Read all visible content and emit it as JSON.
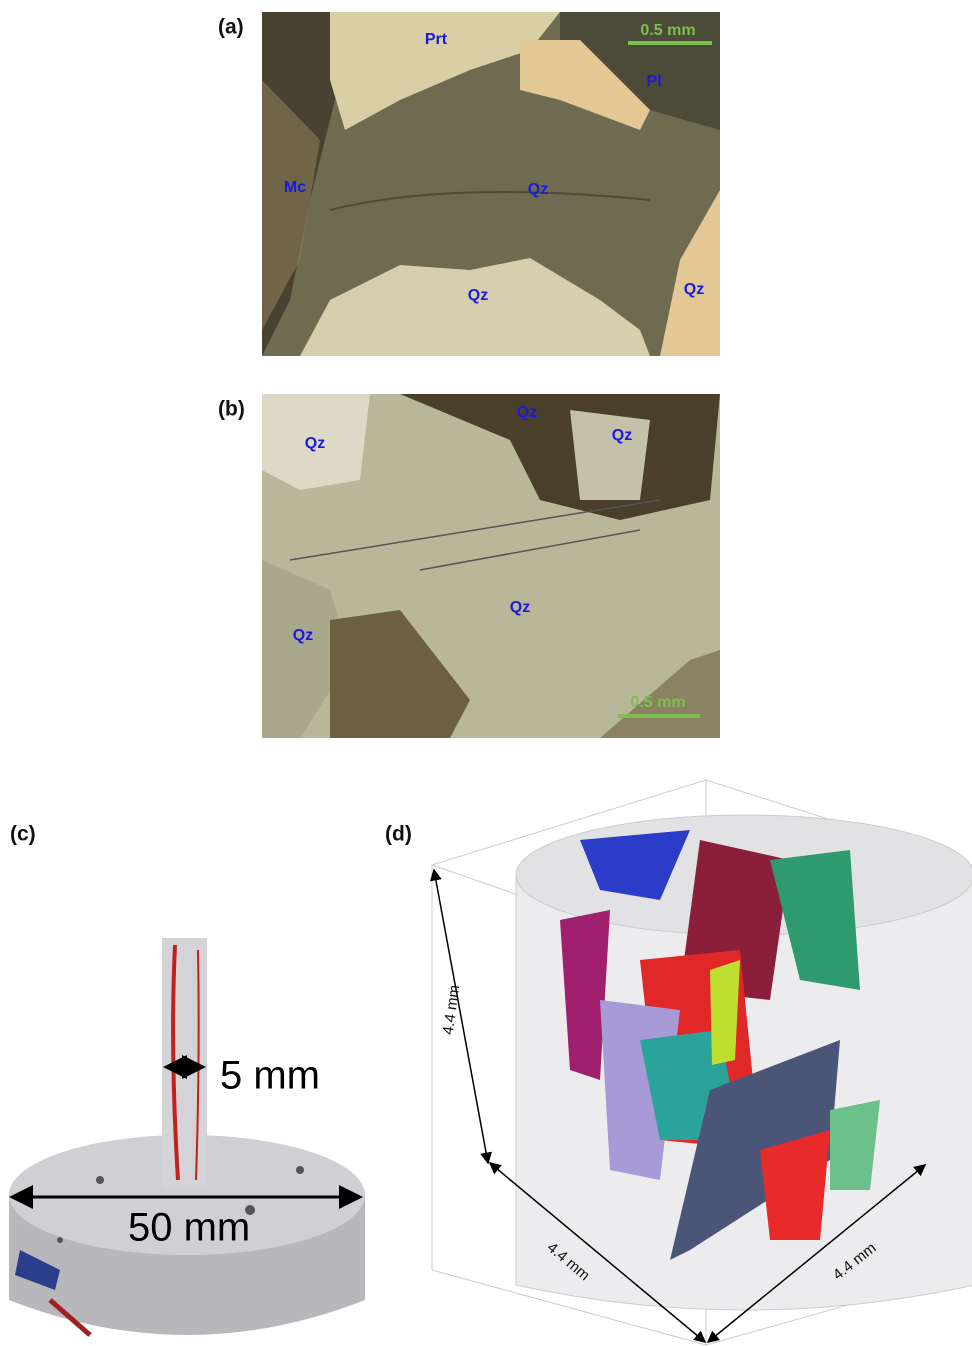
{
  "panels": {
    "a": {
      "label": "(a)",
      "scale": "0.5 mm",
      "minerals": [
        "Prt",
        "Pl",
        "Mc",
        "Qz",
        "Qz",
        "Qz"
      ]
    },
    "b": {
      "label": "(b)",
      "scale": "0.5 mm",
      "minerals": [
        "Qz",
        "Qz",
        "Qz",
        "Qz",
        "Qz"
      ]
    },
    "c": {
      "label": "(c)",
      "dimensions": [
        "5 mm",
        "50 mm"
      ]
    },
    "d": {
      "label": "(d)",
      "dimensions": [
        "4.4 mm",
        "4.4 mm",
        "4.4 mm"
      ]
    }
  }
}
